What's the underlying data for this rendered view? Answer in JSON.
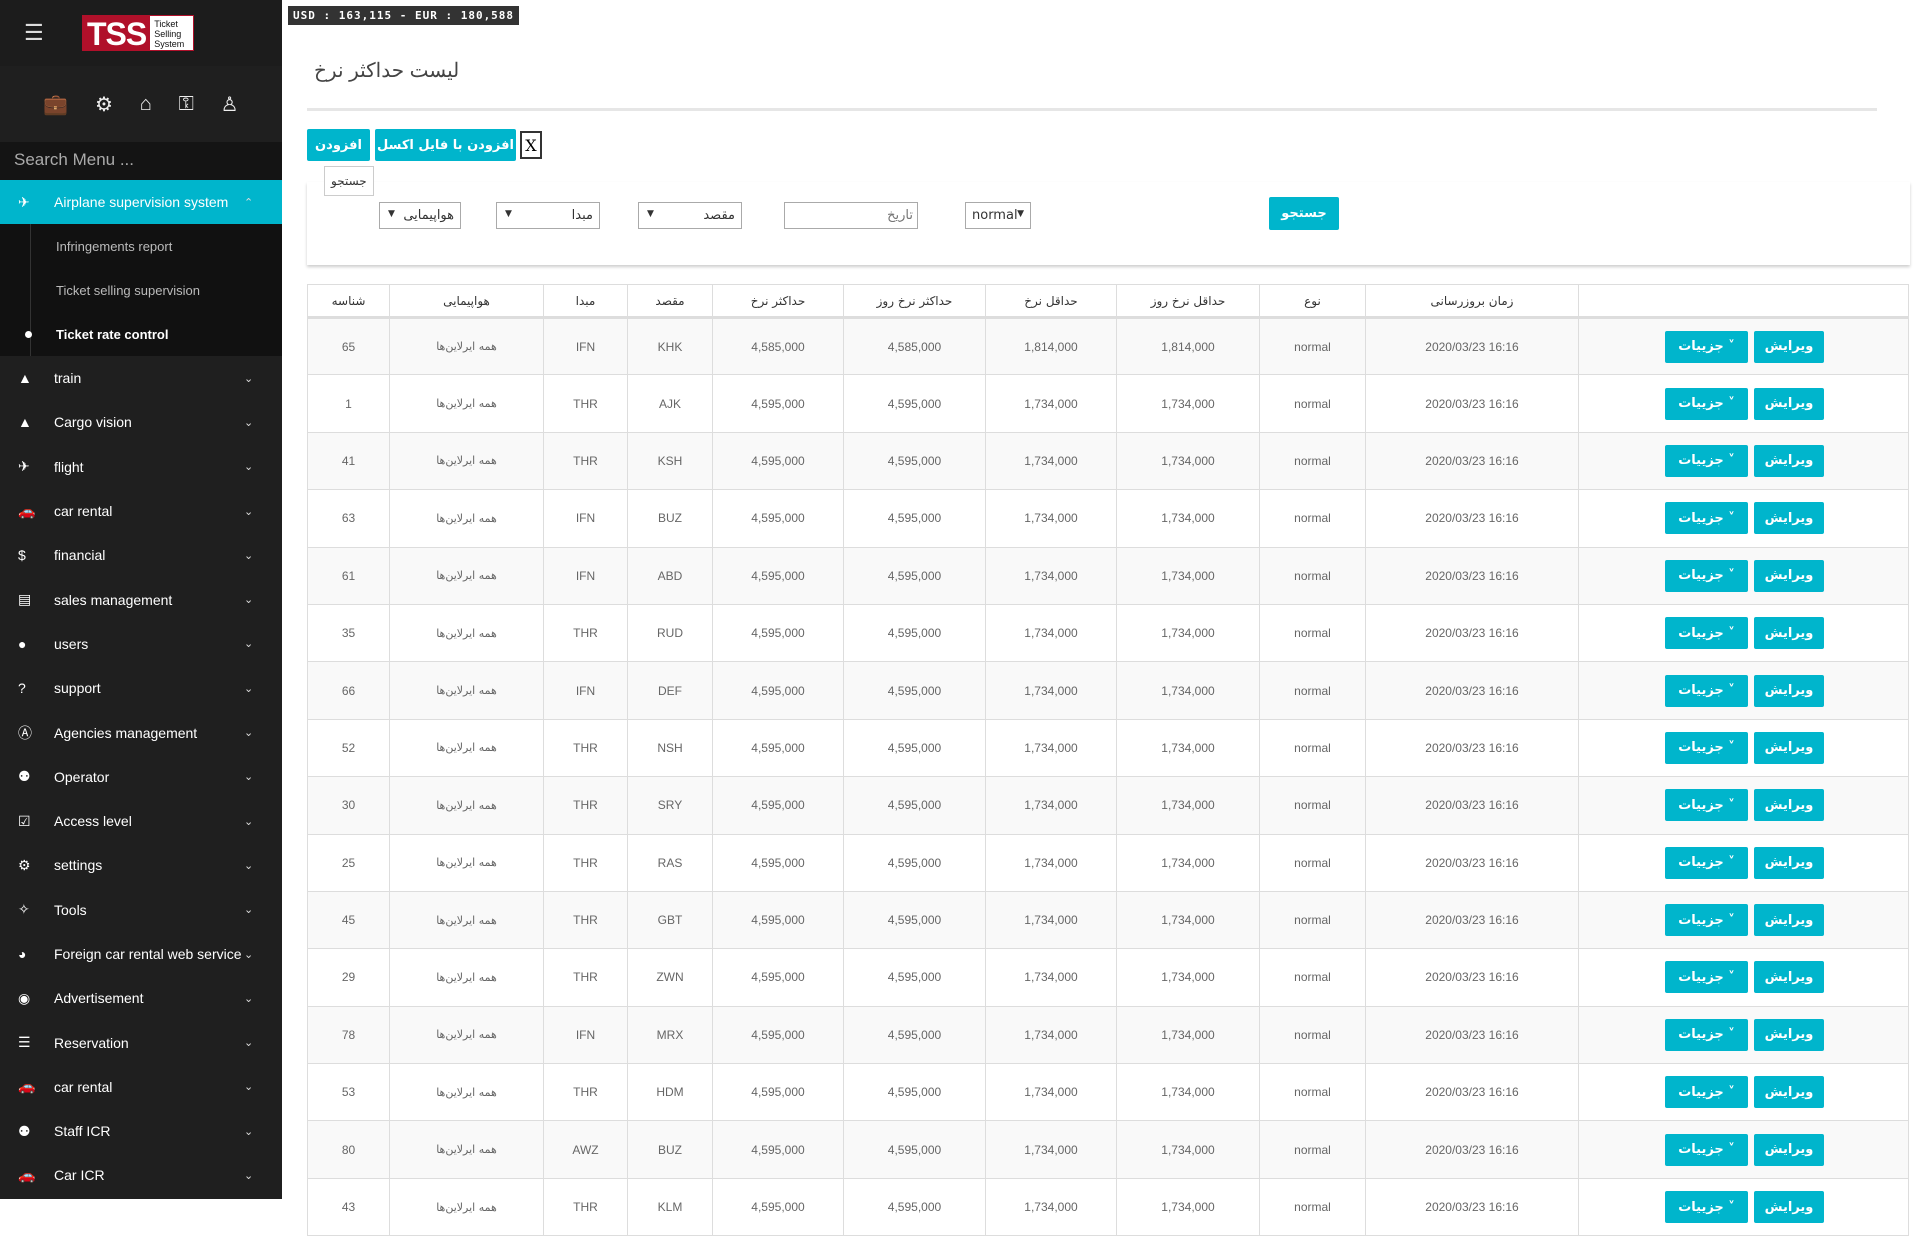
{
  "header": {
    "rates": "USD : 163,115 - EUR : 180,588"
  },
  "logo": {
    "main": "TSS",
    "sub": "Ticket Selling System"
  },
  "sidebar": {
    "search_placeholder": "Search Menu ...",
    "top_icons": [
      "briefcase-icon",
      "gear-icon",
      "home-icon",
      "key-icon",
      "user-secret-icon"
    ],
    "active": {
      "label": "Airplane supervision system",
      "icon": "plane-icon"
    },
    "sub_items": [
      "Infringements report",
      "Ticket selling supervision",
      "Ticket rate control"
    ],
    "items": [
      {
        "label": "train",
        "icon": "road-icon"
      },
      {
        "label": "Cargo vision",
        "icon": "road-icon"
      },
      {
        "label": "flight",
        "icon": "plane-icon"
      },
      {
        "label": "car rental",
        "icon": "car-icon"
      },
      {
        "label": "financial",
        "icon": "dollar-icon"
      },
      {
        "label": "sales management",
        "icon": "keyboard-icon"
      },
      {
        "label": "users",
        "icon": "user-icon"
      },
      {
        "label": "support",
        "icon": "question-icon"
      },
      {
        "label": "Agencies management",
        "icon": "agency-icon"
      },
      {
        "label": "Operator",
        "icon": "users-icon"
      },
      {
        "label": "Access level",
        "icon": "checkbox-icon"
      },
      {
        "label": "settings",
        "icon": "gear-icon"
      },
      {
        "label": "Tools",
        "icon": "magic-wand-icon"
      },
      {
        "label": "Foreign car rental web service",
        "icon": "globe-icon"
      },
      {
        "label": "Advertisement",
        "icon": "eye-icon"
      },
      {
        "label": "Reservation",
        "icon": "list-icon"
      },
      {
        "label": "car rental",
        "icon": "car-icon"
      },
      {
        "label": "Staff ICR",
        "icon": "users-icon"
      },
      {
        "label": "Car ICR",
        "icon": "car-icon"
      }
    ]
  },
  "page": {
    "title": "لیست حداکثر نرخ",
    "add": "افزودن",
    "add_excel": "افزودن با فایل اکسل",
    "tooltip": "جستجو"
  },
  "filters": {
    "airline": "هواپیمایی",
    "origin": "مبدا",
    "destination": "مقصد",
    "date_placeholder": "تاریخ",
    "type": "normal",
    "search": "جستجو"
  },
  "table": {
    "headers": [
      "شناسه",
      "هواپیمایی",
      "مبدا",
      "مقصد",
      "حداکثر نرخ",
      "حداکثر نرخ روز",
      "حداقل نرخ",
      "حداقل نرخ روز",
      "نوع",
      "زمان بروزرسانی",
      ""
    ],
    "details_label": "جزییات ˅",
    "edit_label": "ویرایش",
    "rows": [
      [
        "65",
        "همه ایرلاین‌ها",
        "IFN",
        "KHK",
        "4,585,000",
        "4,585,000",
        "1,814,000",
        "1,814,000",
        "normal",
        "2020/03/23 16:16"
      ],
      [
        "1",
        "همه ایرلاین‌ها",
        "THR",
        "AJK",
        "4,595,000",
        "4,595,000",
        "1,734,000",
        "1,734,000",
        "normal",
        "2020/03/23 16:16"
      ],
      [
        "41",
        "همه ایرلاین‌ها",
        "THR",
        "KSH",
        "4,595,000",
        "4,595,000",
        "1,734,000",
        "1,734,000",
        "normal",
        "2020/03/23 16:16"
      ],
      [
        "63",
        "همه ایرلاین‌ها",
        "IFN",
        "BUZ",
        "4,595,000",
        "4,595,000",
        "1,734,000",
        "1,734,000",
        "normal",
        "2020/03/23 16:16"
      ],
      [
        "61",
        "همه ایرلاین‌ها",
        "IFN",
        "ABD",
        "4,595,000",
        "4,595,000",
        "1,734,000",
        "1,734,000",
        "normal",
        "2020/03/23 16:16"
      ],
      [
        "35",
        "همه ایرلاین‌ها",
        "THR",
        "RUD",
        "4,595,000",
        "4,595,000",
        "1,734,000",
        "1,734,000",
        "normal",
        "2020/03/23 16:16"
      ],
      [
        "66",
        "همه ایرلاین‌ها",
        "IFN",
        "DEF",
        "4,595,000",
        "4,595,000",
        "1,734,000",
        "1,734,000",
        "normal",
        "2020/03/23 16:16"
      ],
      [
        "52",
        "همه ایرلاین‌ها",
        "THR",
        "NSH",
        "4,595,000",
        "4,595,000",
        "1,734,000",
        "1,734,000",
        "normal",
        "2020/03/23 16:16"
      ],
      [
        "30",
        "همه ایرلاین‌ها",
        "THR",
        "SRY",
        "4,595,000",
        "4,595,000",
        "1,734,000",
        "1,734,000",
        "normal",
        "2020/03/23 16:16"
      ],
      [
        "25",
        "همه ایرلاین‌ها",
        "THR",
        "RAS",
        "4,595,000",
        "4,595,000",
        "1,734,000",
        "1,734,000",
        "normal",
        "2020/03/23 16:16"
      ],
      [
        "45",
        "همه ایرلاین‌ها",
        "THR",
        "GBT",
        "4,595,000",
        "4,595,000",
        "1,734,000",
        "1,734,000",
        "normal",
        "2020/03/23 16:16"
      ],
      [
        "29",
        "همه ایرلاین‌ها",
        "THR",
        "ZWN",
        "4,595,000",
        "4,595,000",
        "1,734,000",
        "1,734,000",
        "normal",
        "2020/03/23 16:16"
      ],
      [
        "78",
        "همه ایرلاین‌ها",
        "IFN",
        "MRX",
        "4,595,000",
        "4,595,000",
        "1,734,000",
        "1,734,000",
        "normal",
        "2020/03/23 16:16"
      ],
      [
        "53",
        "همه ایرلاین‌ها",
        "THR",
        "HDM",
        "4,595,000",
        "4,595,000",
        "1,734,000",
        "1,734,000",
        "normal",
        "2020/03/23 16:16"
      ],
      [
        "80",
        "همه ایرلاین‌ها",
        "AWZ",
        "BUZ",
        "4,595,000",
        "4,595,000",
        "1,734,000",
        "1,734,000",
        "normal",
        "2020/03/23 16:16"
      ],
      [
        "43",
        "همه ایرلاین‌ها",
        "THR",
        "KLM",
        "4,595,000",
        "4,595,000",
        "1,734,000",
        "1,734,000",
        "normal",
        "2020/03/23 16:16"
      ]
    ]
  },
  "colors": {
    "accent": "#00b5cc",
    "sidebar": "#1f1f1f",
    "logo_red": "#b0102a"
  }
}
